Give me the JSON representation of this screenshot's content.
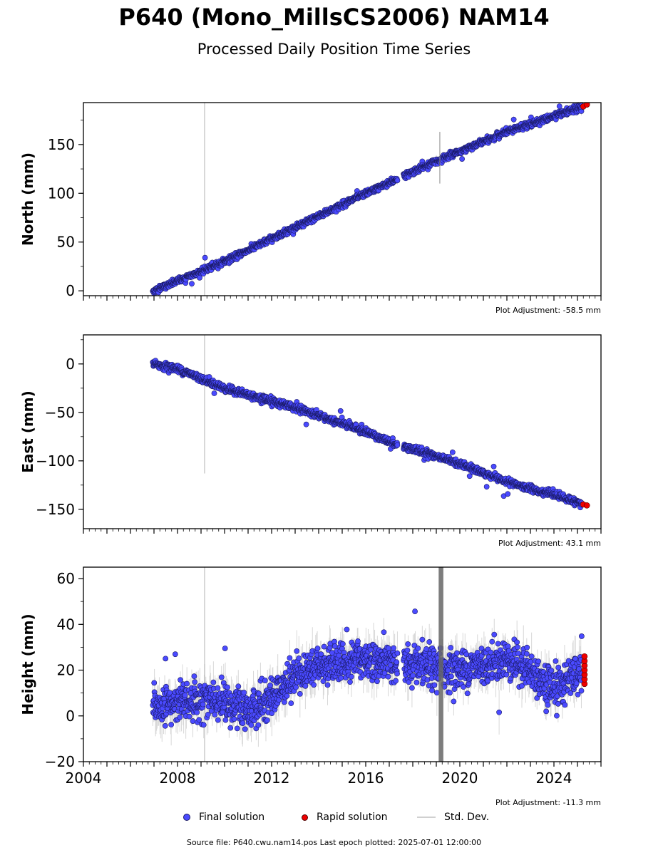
{
  "title": "P640 (Mono_MillsCS2006) NAM14",
  "subtitle": "Processed Daily Position Time Series",
  "colors": {
    "final": "#4a4aff",
    "final_edge": "#1a1a66",
    "rapid": "#ee0000",
    "stddev": "#b8b8b8"
  },
  "legend": {
    "final": "Final solution",
    "rapid": "Rapid solution",
    "stddev": "Std. Dev."
  },
  "footer": "Source file: P640.cwu.nam14.pos  Last epoch plotted: 2025-07-01 12:00:00",
  "chart_data": [
    {
      "type": "scatter",
      "ylabel": "North (mm)",
      "adjustment": "Plot Adjustment: -58.5 mm",
      "xlim": [
        2004,
        2026
      ],
      "ylim": [
        -5,
        193
      ],
      "yticks": [
        "0",
        "50",
        "100",
        "150"
      ],
      "xticks": [],
      "series": [
        {
          "name": "Final solution",
          "trend": [
            [
              2007.0,
              0
            ],
            [
              2010.0,
              30
            ],
            [
              2013.0,
              65
            ],
            [
              2016.0,
              100
            ],
            [
              2019.0,
              133
            ],
            [
              2022.0,
              163
            ],
            [
              2025.4,
              190
            ]
          ],
          "noise": 2.5,
          "start": 2006.95,
          "end": 2025.2
        },
        {
          "name": "Rapid solution",
          "x": [
            2025.25,
            2025.4
          ],
          "y": [
            189,
            191
          ]
        }
      ]
    },
    {
      "type": "scatter",
      "ylabel": "East (mm)",
      "adjustment": "Plot Adjustment: 43.1 mm",
      "xlim": [
        2004,
        2026
      ],
      "ylim": [
        -170,
        30
      ],
      "yticks": [
        "0",
        "−50",
        "−100",
        "−150"
      ],
      "xticks": [],
      "series": [
        {
          "name": "Final solution",
          "trend": [
            [
              2007.0,
              0
            ],
            [
              2008.0,
              -5
            ],
            [
              2010.0,
              -25
            ],
            [
              2013.0,
              -45
            ],
            [
              2016.0,
              -70
            ],
            [
              2017.0,
              -80
            ],
            [
              2018.0,
              -88
            ],
            [
              2019.0,
              -95
            ],
            [
              2021.0,
              -112
            ],
            [
              2022.0,
              -122
            ],
            [
              2024.0,
              -135
            ],
            [
              2025.4,
              -146
            ]
          ],
          "noise": 3,
          "start": 2006.95,
          "end": 2025.2
        },
        {
          "name": "Rapid solution",
          "x": [
            2025.25,
            2025.4
          ],
          "y": [
            -145,
            -146
          ]
        }
      ]
    },
    {
      "type": "scatter",
      "ylabel": "Height (mm)",
      "adjustment": "Plot Adjustment: -11.3 mm",
      "xlim": [
        2004,
        2026
      ],
      "ylim": [
        -20,
        65
      ],
      "yticks": [
        "−20",
        "0",
        "20",
        "40",
        "60"
      ],
      "xticks": [
        "2004",
        "2008",
        "2012",
        "2016",
        "2020",
        "2024"
      ],
      "series": [
        {
          "name": "Final solution",
          "trend": [
            [
              2007.0,
              3
            ],
            [
              2009.0,
              8
            ],
            [
              2011.0,
              2
            ],
            [
              2012.0,
              8
            ],
            [
              2013.0,
              18
            ],
            [
              2014.0,
              22
            ],
            [
              2016.0,
              25
            ],
            [
              2018.0,
              22
            ],
            [
              2020.0,
              20
            ],
            [
              2022.0,
              25
            ],
            [
              2023.0,
              20
            ],
            [
              2024.0,
              12
            ],
            [
              2025.2,
              20
            ]
          ],
          "noise": 7,
          "start": 2006.95,
          "end": 2025.2
        },
        {
          "name": "Rapid solution",
          "x": [
            2025.3,
            2025.3,
            2025.3,
            2025.3,
            2025.3,
            2025.3,
            2025.3
          ],
          "y": [
            14,
            16,
            18,
            20,
            22,
            24,
            26
          ]
        }
      ]
    }
  ]
}
